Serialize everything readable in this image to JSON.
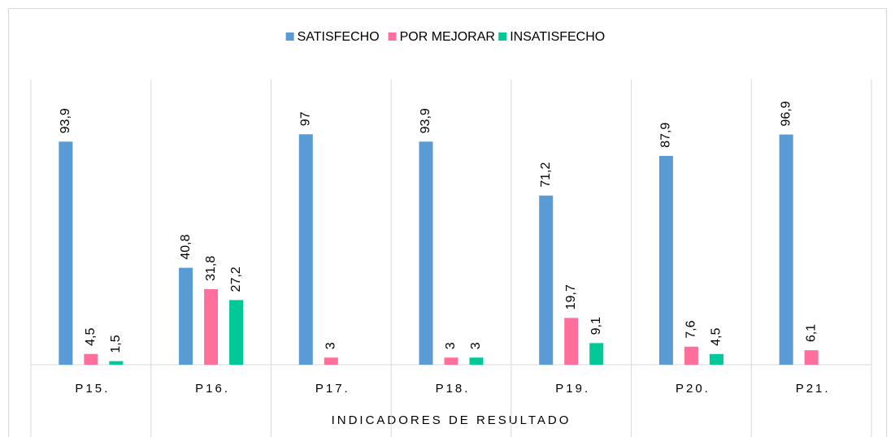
{
  "chart_data": {
    "type": "bar",
    "x_label": "INDICADORES DE RESULTADO",
    "categories": [
      "P15.",
      "P16.",
      "P17.",
      "P18.",
      "P19.",
      "P20.",
      "P21."
    ],
    "series": [
      {
        "name": "SATISFECHO",
        "color": "#5b9bd5",
        "values": [
          93.9,
          40.8,
          97,
          93.9,
          71.2,
          87.9,
          96.9
        ],
        "value_labels": [
          "93,9",
          "40,8",
          "97",
          "93,9",
          "71,2",
          "87,9",
          "96,9"
        ]
      },
      {
        "name": "POR MEJORAR",
        "color": "#ff6f9c",
        "values": [
          4.5,
          31.8,
          3,
          3,
          19.7,
          7.6,
          6.1
        ],
        "value_labels": [
          "4,5",
          "31,8",
          "3",
          "3",
          "19,7",
          "7,6",
          "6,1"
        ]
      },
      {
        "name": "INSATISFECHO",
        "color": "#00c896",
        "values": [
          1.5,
          27.2,
          null,
          3,
          9.1,
          4.5,
          null
        ],
        "value_labels": [
          "1,5",
          "27,2",
          null,
          "3",
          "9,1",
          "4,5",
          null
        ]
      }
    ],
    "ylim": [
      0,
      120
    ],
    "legend": "top"
  }
}
